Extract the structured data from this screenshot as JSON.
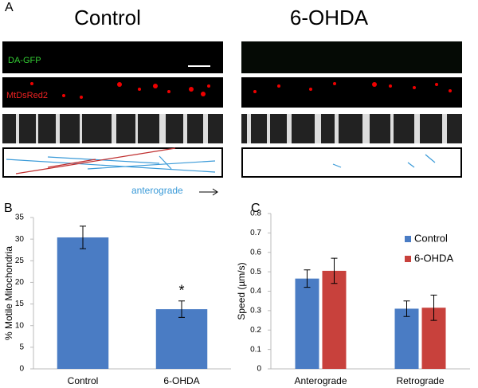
{
  "figure": {
    "panel_labels": [
      "A",
      "B",
      "C"
    ],
    "column_titles": [
      "Control",
      "6-OHDA"
    ],
    "channel_labels": [
      "DA-GFP",
      "MtDsRed2"
    ],
    "direction_label": "anterograde"
  },
  "chart_data": [
    {
      "type": "bar",
      "ylabel": "% Motile Mitochondria",
      "categories": [
        "Control",
        "6-OHDA"
      ],
      "values": [
        30.4,
        13.8
      ],
      "errors": [
        2.6,
        1.9
      ],
      "color": "#4a7cc4",
      "annotation": "*",
      "ylim": [
        0,
        35
      ],
      "yticks": [
        0,
        5,
        10,
        15,
        20,
        25,
        30,
        35
      ]
    },
    {
      "type": "bar",
      "ylabel": "Speed (µm/s)",
      "categories": [
        "Anterograde",
        "Retrograde"
      ],
      "series": [
        {
          "name": "Control",
          "color": "#4a7cc4",
          "values": [
            0.465,
            0.31
          ],
          "errors": [
            0.045,
            0.04
          ]
        },
        {
          "name": "6-OHDA",
          "color": "#c8413c",
          "values": [
            0.505,
            0.315
          ],
          "errors": [
            0.065,
            0.065
          ]
        }
      ],
      "ylim": [
        0,
        0.8
      ],
      "yticks": [
        0,
        0.1,
        0.2,
        0.3,
        0.4,
        0.5,
        0.6,
        0.7,
        0.8
      ]
    }
  ]
}
